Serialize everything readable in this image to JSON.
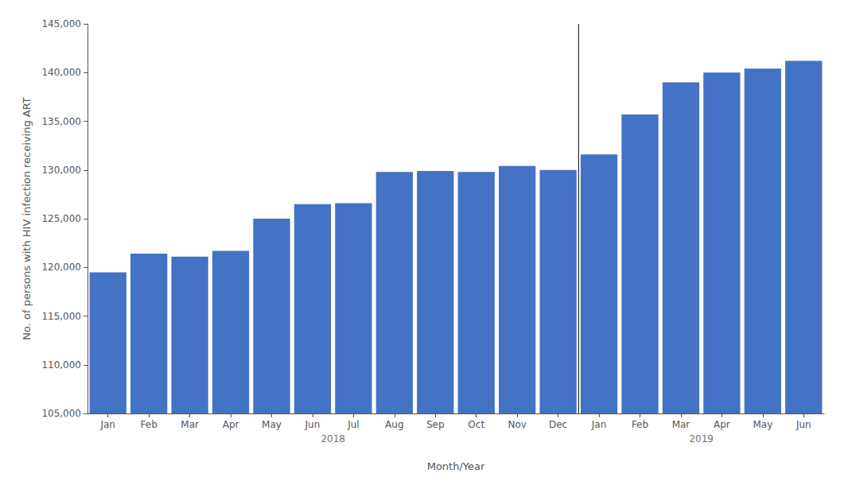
{
  "chart_data": {
    "type": "bar",
    "categories": [
      "Jan",
      "Feb",
      "Mar",
      "Apr",
      "May",
      "Jun",
      "Jul",
      "Aug",
      "Sep",
      "Oct",
      "Nov",
      "Dec",
      "Jan",
      "Feb",
      "Mar",
      "Apr",
      "May",
      "Jun"
    ],
    "values": [
      119500,
      121400,
      121100,
      121700,
      125000,
      126500,
      126600,
      129800,
      129900,
      129800,
      130400,
      130000,
      131600,
      135700,
      139000,
      140000,
      140400,
      141200
    ],
    "color": "#4472C4",
    "xlabel": "Month/Year",
    "ylabel": "No. of persons with HIV infection receiving ART",
    "groups": [
      {
        "label": "2018",
        "size": 12
      },
      {
        "label": "2019",
        "size": 6
      }
    ],
    "ylim": [
      105000,
      145000
    ],
    "yticks": [
      {
        "value": 105000,
        "label": "105,000"
      },
      {
        "value": 110000,
        "label": "110,000"
      },
      {
        "value": 115000,
        "label": "115,000"
      },
      {
        "value": 120000,
        "label": "120,000"
      },
      {
        "value": 125000,
        "label": "125,000"
      },
      {
        "value": 130000,
        "label": "130,000"
      },
      {
        "value": 135000,
        "label": "135,000"
      },
      {
        "value": 140000,
        "label": "140,000"
      },
      {
        "value": 145000,
        "label": "145,000"
      }
    ],
    "grid": false
  }
}
